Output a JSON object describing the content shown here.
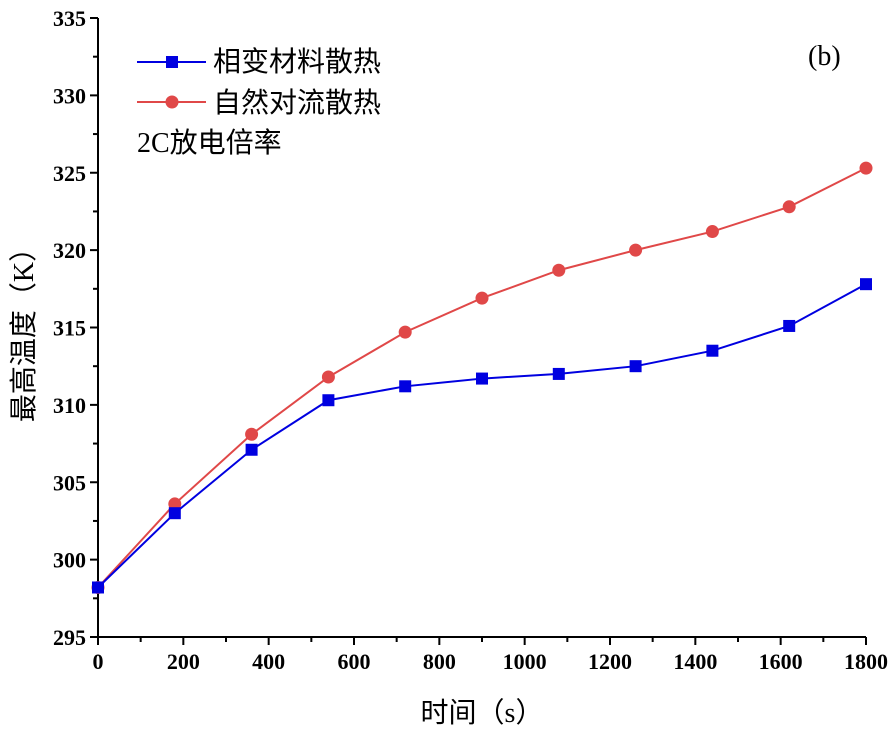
{
  "chart_data": {
    "type": "line",
    "panel_label": "(b)",
    "xlabel": "时间（s）",
    "ylabel": "最高温度（K）",
    "xlim": [
      0,
      1800
    ],
    "ylim": [
      295,
      335
    ],
    "xticks": [
      0,
      200,
      400,
      600,
      800,
      1000,
      1200,
      1400,
      1600,
      1800
    ],
    "yticks": [
      295,
      300,
      305,
      310,
      315,
      320,
      325,
      330,
      335
    ],
    "x": [
      0,
      180,
      360,
      540,
      720,
      900,
      1080,
      1260,
      1440,
      1620,
      1800
    ],
    "series": [
      {
        "name": "相变材料散热",
        "color": "#0000e0",
        "marker": "square",
        "values": [
          298.2,
          303.0,
          307.1,
          310.3,
          311.2,
          311.7,
          312.0,
          312.5,
          313.5,
          315.1,
          317.8
        ]
      },
      {
        "name": "自然对流散热",
        "color": "#e04848",
        "marker": "circle",
        "values": [
          298.2,
          303.6,
          308.1,
          311.8,
          314.7,
          316.9,
          318.7,
          320.0,
          321.2,
          322.8,
          325.3
        ]
      }
    ],
    "annotation": "2C放电倍率",
    "legend_position": "top-left",
    "grid": false
  }
}
